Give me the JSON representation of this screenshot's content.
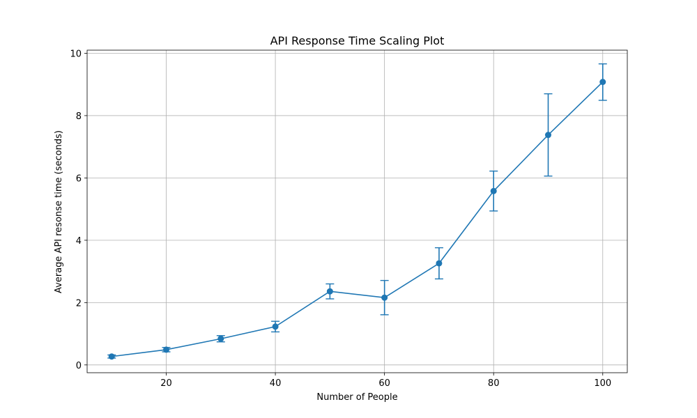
{
  "chart_data": {
    "type": "line",
    "title": "API Response Time Scaling Plot",
    "xlabel": "Number of People",
    "ylabel": "Average API resonse time (seconds)",
    "xlim": [
      5.5,
      104.5
    ],
    "ylim": [
      -0.25,
      10.1
    ],
    "xticks": [
      20,
      40,
      60,
      80,
      100
    ],
    "yticks": [
      0,
      2,
      4,
      6,
      8,
      10
    ],
    "grid": true,
    "color": "#1f77b4",
    "series": [
      {
        "x": [
          10,
          20,
          30,
          40,
          50,
          60,
          70,
          80,
          90,
          100
        ],
        "y": [
          0.27,
          0.49,
          0.84,
          1.23,
          2.36,
          2.16,
          3.26,
          5.58,
          7.38,
          9.08
        ],
        "yerr_lower": [
          0.05,
          0.07,
          0.1,
          0.17,
          0.24,
          0.55,
          0.5,
          0.64,
          1.32,
          0.59
        ],
        "yerr_upper": [
          0.05,
          0.07,
          0.1,
          0.17,
          0.24,
          0.55,
          0.5,
          0.64,
          1.32,
          0.58
        ]
      }
    ]
  }
}
